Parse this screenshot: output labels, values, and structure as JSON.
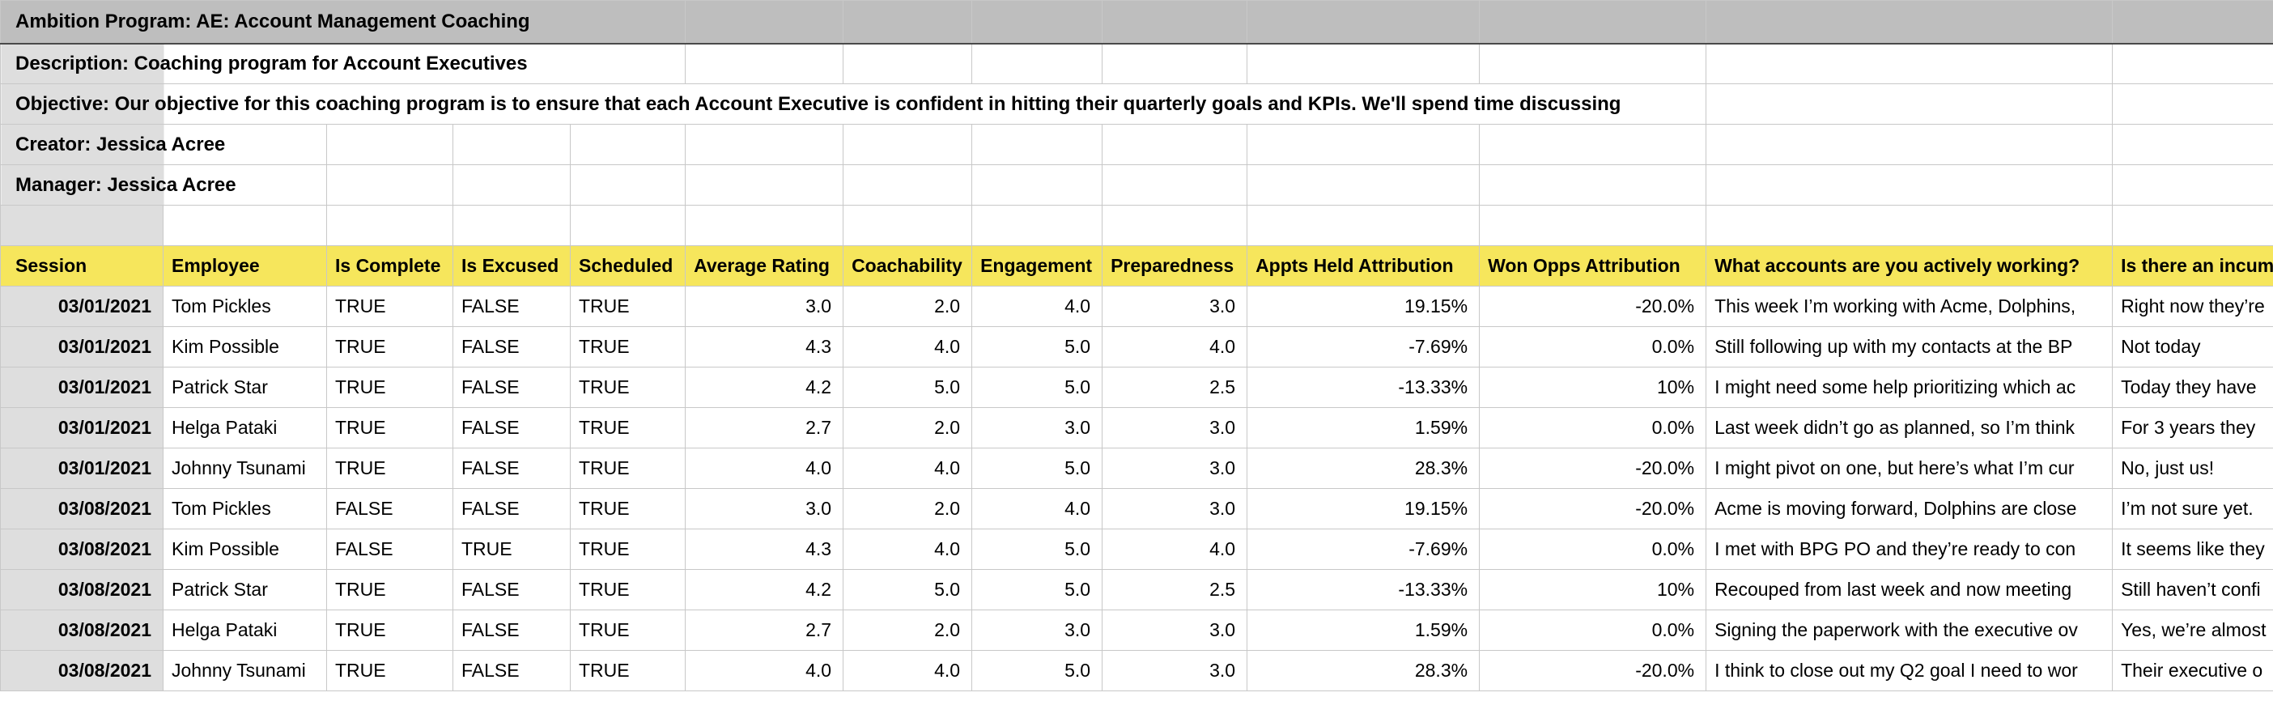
{
  "program_info": {
    "title": "Ambition Program: AE: Account Management Coaching",
    "description": "Description: Coaching program for Account Executives",
    "objective": "Objective: Our objective for this coaching program is to ensure that each Account Executive is confident in hitting their quarterly goals and KPIs. We'll spend time discussing",
    "creator": "Creator: Jessica Acree",
    "manager": "Manager: Jessica Acree"
  },
  "table": {
    "columns": [
      "Session",
      "Employee",
      "Is Complete",
      "Is Excused",
      "Scheduled",
      "Average Rating",
      "Coachability",
      "Engagement",
      "Preparedness",
      "Appts Held Attribution",
      "Won Opps Attribution",
      "What accounts are you actively working?",
      "Is there an incum"
    ],
    "column_keys": [
      "session",
      "employee",
      "is-complete",
      "is-excused",
      "scheduled",
      "average-rating",
      "coachability",
      "engagement",
      "preparedness",
      "appts-held-attribution",
      "won-opps-attribution",
      "accounts-question",
      "incumbent-question"
    ],
    "rows": [
      [
        "03/01/2021",
        "Tom Pickles",
        "TRUE",
        "FALSE",
        "TRUE",
        "3.0",
        "2.0",
        "4.0",
        "3.0",
        "19.15%",
        "-20.0%",
        "This week I’m working with Acme, Dolphins,",
        "Right now they’re"
      ],
      [
        "03/01/2021",
        "Kim Possible",
        "TRUE",
        "FALSE",
        "TRUE",
        "4.3",
        "4.0",
        "5.0",
        "4.0",
        "-7.69%",
        "0.0%",
        "Still following up with my contacts at the BP",
        "Not today"
      ],
      [
        "03/01/2021",
        "Patrick Star",
        "TRUE",
        "FALSE",
        "TRUE",
        "4.2",
        "5.0",
        "5.0",
        "2.5",
        "-13.33%",
        "10%",
        "I might need some help prioritizing which ac",
        "Today they have"
      ],
      [
        "03/01/2021",
        "Helga Pataki",
        "TRUE",
        "FALSE",
        "TRUE",
        "2.7",
        "2.0",
        "3.0",
        "3.0",
        "1.59%",
        "0.0%",
        "Last week didn’t go as planned, so I’m think",
        "For 3 years they"
      ],
      [
        "03/01/2021",
        "Johnny Tsunami",
        "TRUE",
        "FALSE",
        "TRUE",
        "4.0",
        "4.0",
        "5.0",
        "3.0",
        "28.3%",
        "-20.0%",
        "I might pivot on one, but here’s what I’m cur",
        "No, just us!"
      ],
      [
        "03/08/2021",
        "Tom Pickles",
        "FALSE",
        "FALSE",
        "TRUE",
        "3.0",
        "2.0",
        "4.0",
        "3.0",
        "19.15%",
        "-20.0%",
        "Acme is moving forward, Dolphins are close",
        "I’m not sure yet."
      ],
      [
        "03/08/2021",
        "Kim Possible",
        "FALSE",
        "TRUE",
        "TRUE",
        "4.3",
        "4.0",
        "5.0",
        "4.0",
        "-7.69%",
        "0.0%",
        "I met with BPG PO and they’re ready to con",
        "It seems like they"
      ],
      [
        "03/08/2021",
        "Patrick Star",
        "TRUE",
        "FALSE",
        "TRUE",
        "4.2",
        "5.0",
        "5.0",
        "2.5",
        "-13.33%",
        "10%",
        "Recouped from last week and now meeting",
        "Still haven’t confi"
      ],
      [
        "03/08/2021",
        "Helga Pataki",
        "TRUE",
        "FALSE",
        "TRUE",
        "2.7",
        "2.0",
        "3.0",
        "3.0",
        "1.59%",
        "0.0%",
        "Signing the paperwork with the executive ov",
        "Yes, we’re almost"
      ],
      [
        "03/08/2021",
        "Johnny Tsunami",
        "TRUE",
        "FALSE",
        "TRUE",
        "4.0",
        "4.0",
        "5.0",
        "3.0",
        "28.3%",
        "-20.0%",
        "I think to close out my Q2 goal I need to wor",
        "Their executive o"
      ]
    ]
  },
  "colors": {
    "header_yellow": "#F6E65C",
    "program_row_gray": "#BEBEBE",
    "label_gray": "#DEDEDE",
    "grid_border": "#C8C8C8",
    "title_bottom_border": "#4A4A4A",
    "text": "#000000"
  }
}
